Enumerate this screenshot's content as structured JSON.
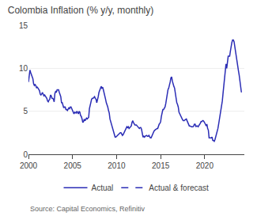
{
  "chart_data": {
    "type": "line",
    "title": "Colombia Inflation (% y/y, monthly)",
    "annotations": [
      "Source: Capital Economics, Refinitiv"
    ],
    "x": [
      2000.0,
      2000.083,
      2000.167,
      2000.25,
      2000.333,
      2000.417,
      2000.5,
      2000.583,
      2000.667,
      2000.75,
      2000.833,
      2000.917,
      2001.0,
      2001.083,
      2001.167,
      2001.25,
      2001.333,
      2001.417,
      2001.5,
      2001.583,
      2001.667,
      2001.75,
      2001.833,
      2001.917,
      2002.0,
      2002.083,
      2002.167,
      2002.25,
      2002.333,
      2002.417,
      2002.5,
      2002.583,
      2002.667,
      2002.75,
      2002.833,
      2002.917,
      2003.0,
      2003.083,
      2003.167,
      2003.25,
      2003.333,
      2003.417,
      2003.5,
      2003.583,
      2003.667,
      2003.75,
      2003.833,
      2003.917,
      2004.0,
      2004.083,
      2004.167,
      2004.25,
      2004.333,
      2004.417,
      2004.5,
      2004.583,
      2004.667,
      2004.75,
      2004.833,
      2004.917,
      2005.0,
      2005.083,
      2005.167,
      2005.25,
      2005.333,
      2005.417,
      2005.5,
      2005.583,
      2005.667,
      2005.75,
      2005.833,
      2005.917,
      2006.0,
      2006.083,
      2006.167,
      2006.25,
      2006.333,
      2006.417,
      2006.5,
      2006.583,
      2006.667,
      2006.75,
      2006.833,
      2006.917,
      2007.0,
      2007.083,
      2007.167,
      2007.25,
      2007.333,
      2007.417,
      2007.5,
      2007.583,
      2007.667,
      2007.75,
      2007.833,
      2007.917,
      2008.0,
      2008.083,
      2008.167,
      2008.25,
      2008.333,
      2008.417,
      2008.5,
      2008.583,
      2008.667,
      2008.75,
      2008.833,
      2008.917,
      2009.0,
      2009.083,
      2009.167,
      2009.25,
      2009.333,
      2009.417,
      2009.5,
      2009.583,
      2009.667,
      2009.75,
      2009.833,
      2009.917,
      2010.0,
      2010.083,
      2010.167,
      2010.25,
      2010.333,
      2010.417,
      2010.5,
      2010.583,
      2010.667,
      2010.75,
      2010.833,
      2010.917,
      2011.0,
      2011.083,
      2011.167,
      2011.25,
      2011.333,
      2011.417,
      2011.5,
      2011.583,
      2011.667,
      2011.75,
      2011.833,
      2011.917,
      2012.0,
      2012.083,
      2012.167,
      2012.25,
      2012.333,
      2012.417,
      2012.5,
      2012.583,
      2012.667,
      2012.75,
      2012.833,
      2012.917,
      2013.0,
      2013.083,
      2013.167,
      2013.25,
      2013.333,
      2013.417,
      2013.5,
      2013.583,
      2013.667,
      2013.75,
      2013.833,
      2013.917,
      2014.0,
      2014.083,
      2014.167,
      2014.25,
      2014.333,
      2014.417,
      2014.5,
      2014.583,
      2014.667,
      2014.75,
      2014.833,
      2014.917,
      2015.0,
      2015.083,
      2015.167,
      2015.25,
      2015.333,
      2015.417,
      2015.5,
      2015.583,
      2015.667,
      2015.75,
      2015.833,
      2015.917,
      2016.0,
      2016.083,
      2016.167,
      2016.25,
      2016.333,
      2016.417,
      2016.5,
      2016.583,
      2016.667,
      2016.75,
      2016.833,
      2016.917,
      2017.0,
      2017.083,
      2017.167,
      2017.25,
      2017.333,
      2017.417,
      2017.5,
      2017.583,
      2017.667,
      2017.75,
      2017.833,
      2017.917,
      2018.0,
      2018.083,
      2018.167,
      2018.25,
      2018.333,
      2018.417,
      2018.5,
      2018.583,
      2018.667,
      2018.75,
      2018.833,
      2018.917,
      2019.0,
      2019.083,
      2019.167,
      2019.25,
      2019.333,
      2019.417,
      2019.5,
      2019.583,
      2019.667,
      2019.75,
      2019.833,
      2019.917,
      2020.0,
      2020.083,
      2020.167,
      2020.25,
      2020.333,
      2020.417,
      2020.5,
      2020.583,
      2020.667,
      2020.75,
      2020.833,
      2020.917,
      2021.0,
      2021.083,
      2021.167,
      2021.25,
      2021.333,
      2021.417,
      2021.5,
      2021.583,
      2021.667,
      2021.75,
      2021.833,
      2021.917,
      2022.0,
      2022.083,
      2022.167,
      2022.25,
      2022.333,
      2022.417,
      2022.5,
      2022.583,
      2022.667,
      2022.75,
      2022.833,
      2022.917,
      2023.0,
      2023.083,
      2023.167,
      2023.25,
      2023.333,
      2023.417,
      2023.5,
      2023.583,
      2023.667,
      2023.75,
      2023.833,
      2023.917,
      2024.0,
      2024.083,
      2024.167
    ],
    "series": [
      {
        "name": "Actual",
        "color": "#2b2db5",
        "line_style": "solid",
        "values": [
          8.4,
          9.5,
          9.8,
          9.5,
          9.2,
          9.0,
          8.8,
          8.2,
          8.0,
          8.1,
          8.0,
          7.7,
          7.8,
          7.7,
          7.6,
          7.4,
          7.0,
          6.9,
          7.0,
          7.2,
          7.0,
          6.8,
          6.9,
          6.8,
          6.7,
          6.5,
          6.2,
          6.1,
          6.3,
          6.4,
          6.9,
          6.8,
          6.5,
          6.5,
          6.4,
          6.1,
          7.1,
          7.3,
          7.2,
          7.5,
          7.5,
          7.5,
          7.2,
          7.0,
          6.7,
          6.0,
          6.0,
          5.7,
          5.4,
          5.5,
          5.5,
          5.2,
          5.2,
          5.1,
          5.2,
          5.4,
          5.3,
          5.5,
          5.5,
          5.3,
          5.0,
          4.9,
          4.7,
          4.9,
          4.8,
          4.8,
          5.0,
          4.8,
          4.7,
          5.0,
          4.9,
          4.5,
          4.4,
          4.1,
          3.7,
          3.8,
          4.1,
          3.9,
          4.1,
          4.2,
          4.1,
          4.2,
          4.3,
          5.3,
          5.7,
          6.2,
          6.4,
          6.5,
          6.5,
          6.6,
          6.7,
          6.5,
          6.4,
          6.0,
          6.3,
          6.7,
          7.2,
          7.5,
          7.8,
          7.9,
          7.7,
          7.8,
          7.5,
          7.2,
          6.9,
          6.4,
          6.0,
          5.8,
          5.5,
          5.1,
          4.8,
          4.1,
          3.8,
          3.5,
          3.2,
          3.0,
          2.6,
          2.2,
          2.0,
          2.0,
          2.1,
          2.2,
          2.3,
          2.4,
          2.5,
          2.5,
          2.5,
          2.3,
          2.2,
          2.3,
          2.5,
          2.6,
          2.8,
          3.0,
          3.2,
          3.1,
          3.2,
          3.0,
          3.1,
          3.2,
          3.3,
          3.7,
          3.9,
          3.7,
          3.5,
          3.4,
          3.4,
          3.4,
          3.3,
          3.2,
          3.0,
          3.0,
          3.1,
          3.1,
          2.9,
          2.5,
          2.0,
          2.1,
          2.0,
          2.1,
          2.2,
          2.2,
          2.1,
          2.1,
          2.2,
          2.0,
          1.9,
          1.9,
          2.1,
          2.4,
          2.5,
          2.7,
          2.8,
          2.9,
          2.9,
          3.0,
          3.0,
          3.3,
          3.5,
          3.6,
          3.8,
          4.4,
          5.0,
          5.2,
          5.2,
          5.4,
          5.5,
          5.9,
          6.5,
          7.0,
          7.5,
          7.7,
          8.0,
          8.4,
          8.9,
          9.0,
          8.5,
          8.0,
          7.9,
          7.7,
          7.0,
          6.5,
          6.0,
          5.8,
          5.5,
          4.9,
          4.7,
          4.6,
          4.3,
          4.1,
          4.0,
          3.9,
          3.9,
          4.0,
          4.1,
          4.1,
          3.9,
          3.7,
          3.5,
          3.3,
          3.3,
          3.2,
          3.2,
          3.2,
          3.2,
          3.3,
          3.5,
          3.5,
          3.2,
          3.3,
          3.3,
          3.2,
          3.3,
          3.4,
          3.6,
          3.8,
          3.8,
          3.9,
          3.9,
          3.8,
          3.7,
          3.5,
          3.3,
          3.5,
          3.0,
          2.8,
          1.9,
          1.9,
          1.9,
          1.9,
          2.0,
          1.6,
          1.6,
          1.5,
          1.7,
          2.0,
          2.3,
          2.6,
          3.0,
          3.5,
          4.0,
          4.5,
          5.1,
          5.6,
          6.2,
          7.1,
          8.0,
          9.0,
          9.7,
          10.5,
          10.0,
          10.8,
          11.4,
          11.4,
          11.4,
          12.0,
          12.7,
          13.0,
          13.3,
          13.3,
          13.1,
          12.5,
          11.8,
          11.1,
          10.5,
          10.1,
          9.7,
          9.2,
          8.5,
          7.7,
          7.2
        ]
      },
      {
        "name": "Actual & forecast",
        "color": "#2b2db5",
        "line_style": "dashed",
        "values": [
          null,
          null,
          null,
          null,
          null,
          null,
          null,
          null,
          null,
          null,
          null,
          null,
          null,
          null,
          null,
          null,
          null,
          null,
          null,
          null,
          null,
          null,
          null,
          null,
          null,
          null,
          null,
          null,
          null,
          null,
          null,
          null,
          null,
          null,
          null,
          null,
          null,
          null,
          null,
          null,
          null,
          null,
          null,
          null,
          null,
          null,
          null,
          null,
          null,
          null,
          null,
          null,
          null,
          null,
          null,
          null,
          null,
          null,
          null,
          null,
          null,
          null,
          null,
          null,
          null,
          null,
          null,
          null,
          null,
          null,
          null,
          null,
          null,
          null,
          null,
          null,
          null,
          null,
          null,
          null,
          null,
          null,
          null,
          null,
          null,
          null,
          null,
          null,
          null,
          null,
          null,
          null,
          null,
          null,
          null,
          null,
          null,
          null,
          null,
          null,
          null,
          null,
          null,
          null,
          null,
          null,
          null,
          null,
          null,
          null,
          null,
          null,
          null,
          null,
          null,
          null,
          null,
          null,
          null,
          null,
          null,
          null,
          null,
          null,
          null,
          null,
          null,
          null,
          null,
          null,
          null,
          null,
          null,
          null,
          null,
          null,
          null,
          null,
          null,
          null,
          null,
          null,
          null,
          null,
          null,
          null,
          null,
          null,
          null,
          null,
          null,
          null,
          null,
          null,
          null,
          null,
          null,
          null,
          null,
          null,
          null,
          null,
          null,
          null,
          null,
          null,
          null,
          null,
          null,
          null,
          null,
          null,
          null,
          null,
          null,
          null,
          null,
          null,
          null,
          null,
          null,
          null,
          null,
          null,
          null,
          null,
          null,
          null,
          null,
          null,
          null,
          null,
          null,
          null,
          null,
          null,
          null,
          null,
          null,
          null,
          null,
          null,
          null,
          null,
          null,
          null,
          null,
          null,
          null,
          null,
          null,
          null,
          null,
          null,
          null,
          null,
          null,
          null,
          null,
          null,
          null,
          null,
          null,
          null,
          null,
          null,
          null,
          null,
          null,
          null,
          null,
          null,
          null,
          null,
          null,
          null,
          null,
          null,
          null,
          null,
          null,
          null,
          null,
          null,
          null,
          null,
          null,
          null,
          null,
          null,
          null,
          null,
          null,
          null,
          null,
          null,
          null,
          null,
          null,
          null,
          null,
          null,
          null,
          null,
          null,
          null,
          null,
          null,
          null,
          null,
          null,
          null,
          null,
          null,
          null,
          null,
          null,
          null,
          null,
          null,
          null,
          null,
          null,
          null,
          null,
          null,
          null,
          null,
          null,
          null,
          null
        ]
      }
    ],
    "xlim": [
      2000,
      2024.5
    ],
    "xticks": [
      2000,
      2005,
      2010,
      2015,
      2020
    ],
    "ylim": [
      0,
      15
    ],
    "yticks": [
      0,
      5,
      10,
      15
    ],
    "grid": true,
    "legend": "bottom"
  }
}
